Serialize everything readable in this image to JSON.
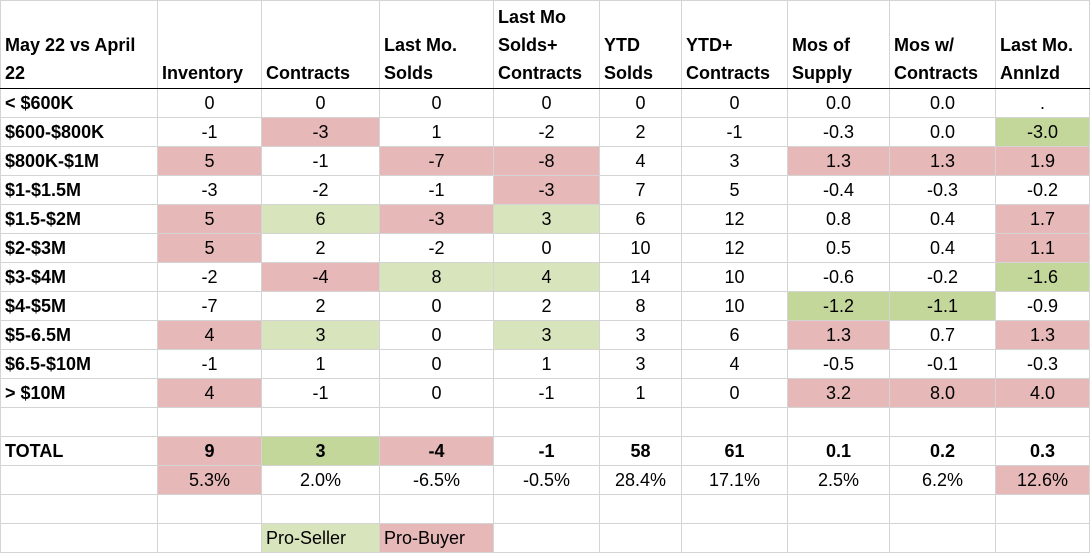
{
  "colors": {
    "pro_seller": "#d8e4bc",
    "pro_seller_strong": "#c4d79b",
    "pro_buyer": "#e6b8b7",
    "gridline": "#d4d4d4"
  },
  "headers": [
    "May 22 vs April 22",
    "Inventory",
    "Contracts",
    "Last Mo. Solds",
    "Last Mo Solds+ Contracts",
    "YTD Solds",
    "YTD+ Contracts",
    "Mos of Supply",
    "Mos w/ Contracts",
    "Last Mo. Annlzd"
  ],
  "rows": [
    {
      "label": "< $600K",
      "cells": [
        {
          "v": "0",
          "c": ""
        },
        {
          "v": "0",
          "c": ""
        },
        {
          "v": "0",
          "c": ""
        },
        {
          "v": "0",
          "c": ""
        },
        {
          "v": "0",
          "c": ""
        },
        {
          "v": "0",
          "c": ""
        },
        {
          "v": "0.0",
          "c": ""
        },
        {
          "v": "0.0",
          "c": ""
        },
        {
          "v": ".",
          "c": ""
        }
      ]
    },
    {
      "label": "$600-$800K",
      "cells": [
        {
          "v": "-1",
          "c": ""
        },
        {
          "v": "-3",
          "c": "red"
        },
        {
          "v": "1",
          "c": ""
        },
        {
          "v": "-2",
          "c": ""
        },
        {
          "v": "2",
          "c": ""
        },
        {
          "v": "-1",
          "c": ""
        },
        {
          "v": "-0.3",
          "c": ""
        },
        {
          "v": "0.0",
          "c": ""
        },
        {
          "v": "-3.0",
          "c": "dgreen"
        }
      ]
    },
    {
      "label": "$800K-$1M",
      "cells": [
        {
          "v": "5",
          "c": "red"
        },
        {
          "v": "-1",
          "c": ""
        },
        {
          "v": "-7",
          "c": "red"
        },
        {
          "v": "-8",
          "c": "red"
        },
        {
          "v": "4",
          "c": ""
        },
        {
          "v": "3",
          "c": ""
        },
        {
          "v": "1.3",
          "c": "red"
        },
        {
          "v": "1.3",
          "c": "red"
        },
        {
          "v": "1.9",
          "c": "red"
        }
      ]
    },
    {
      "label": "$1-$1.5M",
      "cells": [
        {
          "v": "-3",
          "c": ""
        },
        {
          "v": "-2",
          "c": ""
        },
        {
          "v": "-1",
          "c": ""
        },
        {
          "v": "-3",
          "c": "red"
        },
        {
          "v": "7",
          "c": ""
        },
        {
          "v": "5",
          "c": ""
        },
        {
          "v": "-0.4",
          "c": ""
        },
        {
          "v": "-0.3",
          "c": ""
        },
        {
          "v": "-0.2",
          "c": ""
        }
      ]
    },
    {
      "label": "$1.5-$2M",
      "cells": [
        {
          "v": "5",
          "c": "red"
        },
        {
          "v": "6",
          "c": "green"
        },
        {
          "v": "-3",
          "c": "red"
        },
        {
          "v": "3",
          "c": "green"
        },
        {
          "v": "6",
          "c": ""
        },
        {
          "v": "12",
          "c": ""
        },
        {
          "v": "0.8",
          "c": ""
        },
        {
          "v": "0.4",
          "c": ""
        },
        {
          "v": "1.7",
          "c": "red"
        }
      ]
    },
    {
      "label": "$2-$3M",
      "cells": [
        {
          "v": "5",
          "c": "red"
        },
        {
          "v": "2",
          "c": ""
        },
        {
          "v": "-2",
          "c": ""
        },
        {
          "v": "0",
          "c": ""
        },
        {
          "v": "10",
          "c": ""
        },
        {
          "v": "12",
          "c": ""
        },
        {
          "v": "0.5",
          "c": ""
        },
        {
          "v": "0.4",
          "c": ""
        },
        {
          "v": "1.1",
          "c": "red"
        }
      ]
    },
    {
      "label": "$3-$4M",
      "cells": [
        {
          "v": "-2",
          "c": ""
        },
        {
          "v": "-4",
          "c": "red"
        },
        {
          "v": "8",
          "c": "green"
        },
        {
          "v": "4",
          "c": "green"
        },
        {
          "v": "14",
          "c": ""
        },
        {
          "v": "10",
          "c": ""
        },
        {
          "v": "-0.6",
          "c": ""
        },
        {
          "v": "-0.2",
          "c": ""
        },
        {
          "v": "-1.6",
          "c": "dgreen"
        }
      ]
    },
    {
      "label": "$4-$5M",
      "cells": [
        {
          "v": "-7",
          "c": ""
        },
        {
          "v": "2",
          "c": ""
        },
        {
          "v": "0",
          "c": ""
        },
        {
          "v": "2",
          "c": ""
        },
        {
          "v": "8",
          "c": ""
        },
        {
          "v": "10",
          "c": ""
        },
        {
          "v": "-1.2",
          "c": "dgreen"
        },
        {
          "v": "-1.1",
          "c": "dgreen"
        },
        {
          "v": "-0.9",
          "c": ""
        }
      ]
    },
    {
      "label": "$5-6.5M",
      "cells": [
        {
          "v": "4",
          "c": "red"
        },
        {
          "v": "3",
          "c": "green"
        },
        {
          "v": "0",
          "c": ""
        },
        {
          "v": "3",
          "c": "green"
        },
        {
          "v": "3",
          "c": ""
        },
        {
          "v": "6",
          "c": ""
        },
        {
          "v": "1.3",
          "c": "red"
        },
        {
          "v": "0.7",
          "c": ""
        },
        {
          "v": "1.3",
          "c": "red"
        }
      ]
    },
    {
      "label": "$6.5-$10M",
      "cells": [
        {
          "v": "-1",
          "c": ""
        },
        {
          "v": "1",
          "c": ""
        },
        {
          "v": "0",
          "c": ""
        },
        {
          "v": "1",
          "c": ""
        },
        {
          "v": "3",
          "c": ""
        },
        {
          "v": "4",
          "c": ""
        },
        {
          "v": "-0.5",
          "c": ""
        },
        {
          "v": "-0.1",
          "c": ""
        },
        {
          "v": "-0.3",
          "c": ""
        }
      ]
    },
    {
      "label": "> $10M",
      "cells": [
        {
          "v": "4",
          "c": "red"
        },
        {
          "v": "-1",
          "c": ""
        },
        {
          "v": "0",
          "c": ""
        },
        {
          "v": "-1",
          "c": ""
        },
        {
          "v": "1",
          "c": ""
        },
        {
          "v": "0",
          "c": ""
        },
        {
          "v": "3.2",
          "c": "red"
        },
        {
          "v": "8.0",
          "c": "red"
        },
        {
          "v": "4.0",
          "c": "red"
        }
      ]
    }
  ],
  "total": {
    "label": "TOTAL",
    "cells": [
      {
        "v": "9",
        "c": "red"
      },
      {
        "v": "3",
        "c": "dgreen"
      },
      {
        "v": "-4",
        "c": "red"
      },
      {
        "v": "-1",
        "c": ""
      },
      {
        "v": "58",
        "c": ""
      },
      {
        "v": "61",
        "c": ""
      },
      {
        "v": "0.1",
        "c": ""
      },
      {
        "v": "0.2",
        "c": ""
      },
      {
        "v": "0.3",
        "c": ""
      }
    ]
  },
  "percents": [
    {
      "v": "5.3%",
      "c": "red"
    },
    {
      "v": "2.0%",
      "c": ""
    },
    {
      "v": "-6.5%",
      "c": ""
    },
    {
      "v": "-0.5%",
      "c": ""
    },
    {
      "v": "28.4%",
      "c": ""
    },
    {
      "v": "17.1%",
      "c": ""
    },
    {
      "v": "2.5%",
      "c": ""
    },
    {
      "v": "6.2%",
      "c": ""
    },
    {
      "v": "12.6%",
      "c": "red"
    }
  ],
  "legend": {
    "pro_seller": "Pro-Seller",
    "pro_buyer": "Pro-Buyer"
  }
}
